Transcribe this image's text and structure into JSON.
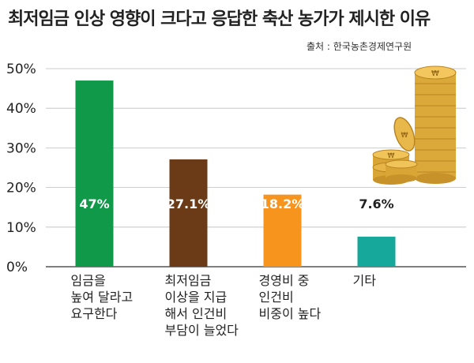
{
  "chart_data": {
    "type": "bar",
    "title": "최저임금 인상 영향이 크다고 응답한 축산 농가가 제시한 이유",
    "source": "출처 : 한국농촌경제연구원",
    "categories": [
      "임금을\n높여 달라고\n요구한다",
      "최저임금\n이상을 지급\n해서 인건비\n부담이 늘었다",
      "경영비 중\n인건비\n비중이 높다",
      "기타"
    ],
    "values": [
      47,
      27.1,
      18.2,
      7.6
    ],
    "value_labels": [
      "47%",
      "27.1%",
      "18.2%",
      "7.6%"
    ],
    "colors": [
      "#11994a",
      "#6b3a16",
      "#f7941d",
      "#17a89c"
    ],
    "value_label_colors": [
      "#ffffff",
      "#ffffff",
      "#ffffff",
      "#222222"
    ],
    "ylim": [
      0,
      50
    ],
    "yticks": [
      "0%",
      "10%",
      "20%",
      "30%",
      "40%",
      "50%"
    ],
    "grid": true,
    "legend": "none"
  },
  "decoration": {
    "coin_color": "#e6b040",
    "coin_shadow": "#b98420",
    "coin_icon": "stacked-won-coins"
  }
}
